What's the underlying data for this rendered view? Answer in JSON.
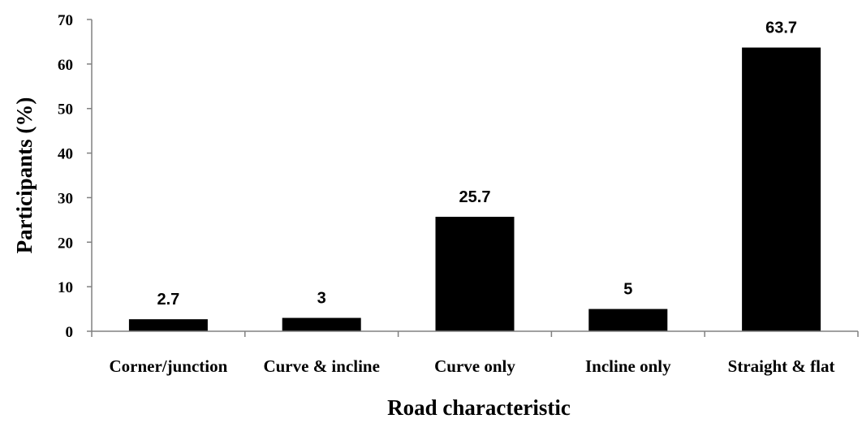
{
  "chart_data": {
    "type": "bar",
    "categories": [
      "Corner/junction",
      "Curve & incline",
      "Curve only",
      "Incline only",
      "Straight & flat"
    ],
    "values": [
      2.7,
      3,
      25.7,
      5,
      63.7
    ],
    "data_labels": [
      "2.7",
      "3",
      "25.7",
      "5",
      "63.7"
    ],
    "title": "",
    "xlabel": "Road characteristic",
    "ylabel": "Participants (%)",
    "ylim": [
      0,
      70
    ],
    "yticks": [
      0,
      10,
      20,
      30,
      40,
      50,
      60,
      70
    ],
    "ytick_labels": [
      "0",
      "10",
      "20",
      "30",
      "40",
      "50",
      "60",
      "70"
    ],
    "grid": false,
    "legend": "none",
    "bar_color": "#000000",
    "axis_color": "#808080"
  }
}
